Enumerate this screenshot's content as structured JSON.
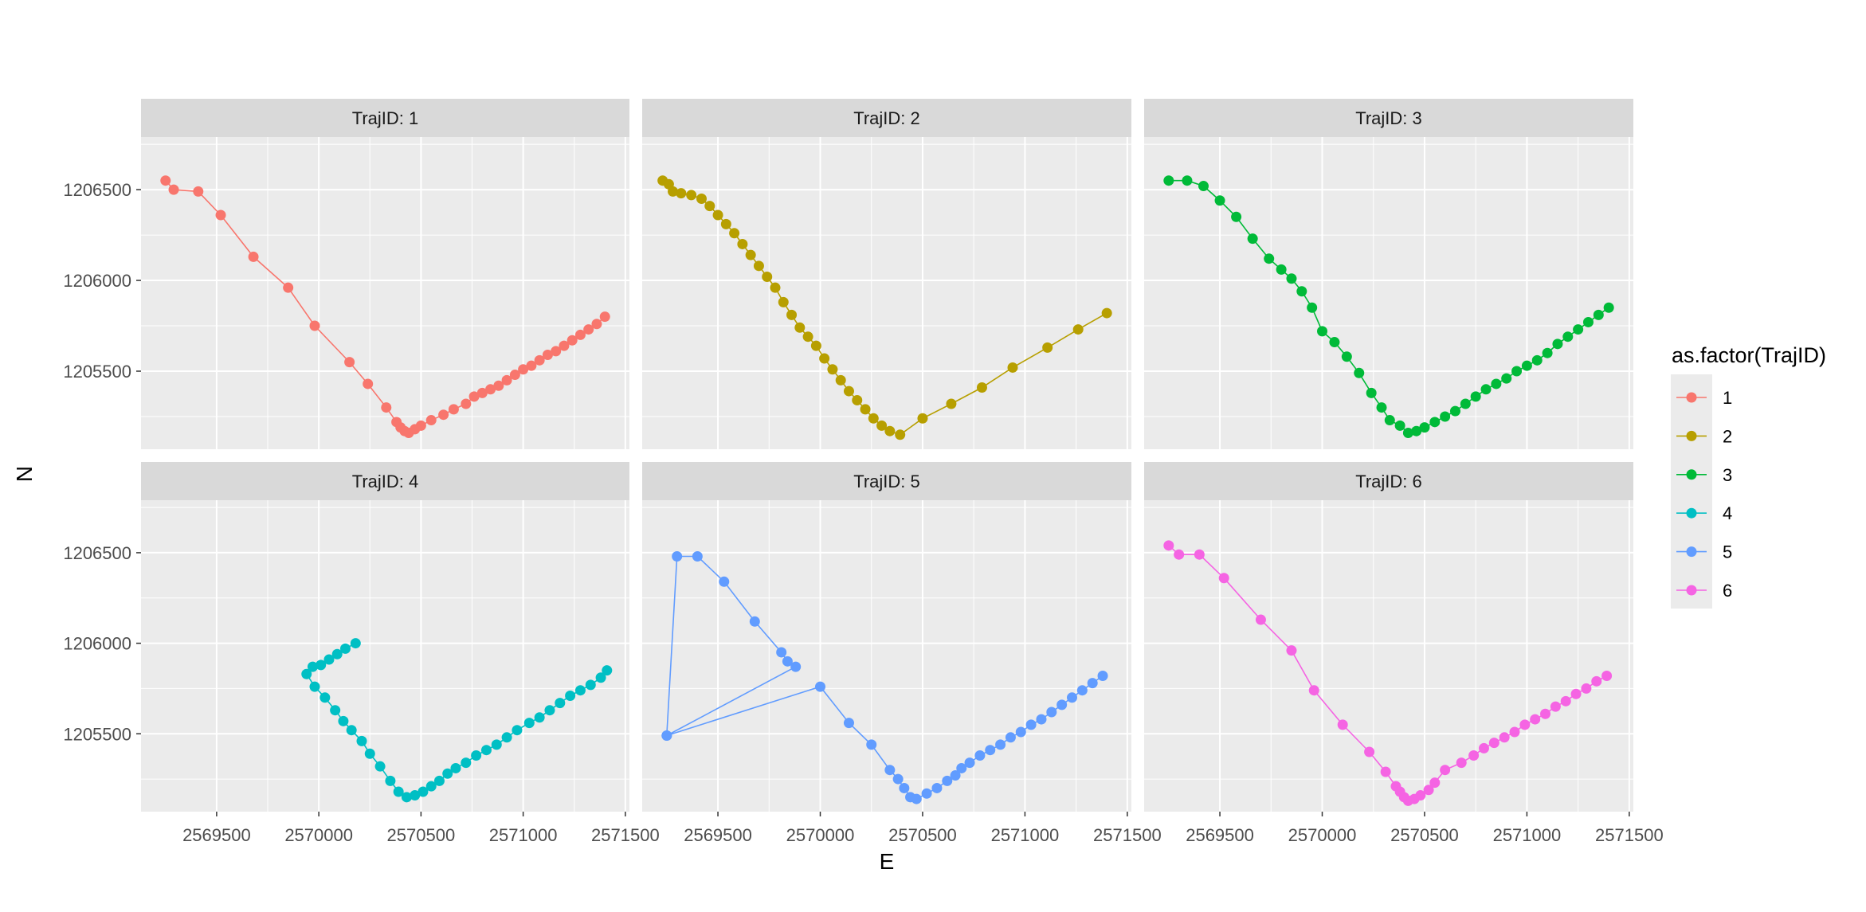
{
  "chart_data": {
    "type": "scatter",
    "subtype": "faceted-line-and-point",
    "xlabel": "E",
    "ylabel": "N",
    "xlim": [
      2569130,
      2571520
    ],
    "ylim": [
      1205070,
      1206790
    ],
    "x_ticks": [
      2569500,
      2570000,
      2570500,
      2571000,
      2571500
    ],
    "y_ticks": [
      1205500,
      1206000,
      1206500
    ],
    "x_tick_labels": [
      "2569500",
      "2570000",
      "2570500",
      "2571000",
      "2571500"
    ],
    "y_tick_labels": [
      "1205500",
      "1206000",
      "1206500"
    ],
    "grid": true,
    "legend": {
      "title": "as.factor(TrajID)",
      "placement": "right",
      "entries": [
        "1",
        "2",
        "3",
        "4",
        "5",
        "6"
      ]
    },
    "facets": [
      {
        "strip": "TrajID: 1",
        "legend_key": "1",
        "color": "#F8766D",
        "points": [
          [
            2569250,
            1206550
          ],
          [
            2569290,
            1206500
          ],
          [
            2569410,
            1206490
          ],
          [
            2569520,
            1206360
          ],
          [
            2569680,
            1206130
          ],
          [
            2569850,
            1205960
          ],
          [
            2569980,
            1205750
          ],
          [
            2570150,
            1205550
          ],
          [
            2570240,
            1205430
          ],
          [
            2570330,
            1205300
          ],
          [
            2570380,
            1205220
          ],
          [
            2570400,
            1205190
          ],
          [
            2570420,
            1205170
          ],
          [
            2570440,
            1205160
          ],
          [
            2570470,
            1205180
          ],
          [
            2570500,
            1205200
          ],
          [
            2570550,
            1205230
          ],
          [
            2570610,
            1205260
          ],
          [
            2570660,
            1205290
          ],
          [
            2570720,
            1205320
          ],
          [
            2570760,
            1205360
          ],
          [
            2570800,
            1205380
          ],
          [
            2570840,
            1205400
          ],
          [
            2570880,
            1205420
          ],
          [
            2570920,
            1205450
          ],
          [
            2570960,
            1205480
          ],
          [
            2571000,
            1205510
          ],
          [
            2571040,
            1205530
          ],
          [
            2571080,
            1205560
          ],
          [
            2571120,
            1205590
          ],
          [
            2571160,
            1205610
          ],
          [
            2571200,
            1205640
          ],
          [
            2571240,
            1205670
          ],
          [
            2571280,
            1205700
          ],
          [
            2571320,
            1205730
          ],
          [
            2571360,
            1205760
          ],
          [
            2571400,
            1205800
          ]
        ]
      },
      {
        "strip": "TrajID: 2",
        "legend_key": "2",
        "color": "#B79F00",
        "points": [
          [
            2569230,
            1206550
          ],
          [
            2569260,
            1206530
          ],
          [
            2569280,
            1206490
          ],
          [
            2569320,
            1206480
          ],
          [
            2569370,
            1206470
          ],
          [
            2569420,
            1206450
          ],
          [
            2569460,
            1206410
          ],
          [
            2569500,
            1206360
          ],
          [
            2569540,
            1206310
          ],
          [
            2569580,
            1206260
          ],
          [
            2569620,
            1206200
          ],
          [
            2569660,
            1206140
          ],
          [
            2569700,
            1206080
          ],
          [
            2569740,
            1206020
          ],
          [
            2569780,
            1205960
          ],
          [
            2569820,
            1205880
          ],
          [
            2569860,
            1205810
          ],
          [
            2569900,
            1205740
          ],
          [
            2569940,
            1205690
          ],
          [
            2569980,
            1205640
          ],
          [
            2570020,
            1205570
          ],
          [
            2570060,
            1205510
          ],
          [
            2570100,
            1205450
          ],
          [
            2570140,
            1205390
          ],
          [
            2570180,
            1205340
          ],
          [
            2570220,
            1205290
          ],
          [
            2570260,
            1205240
          ],
          [
            2570300,
            1205200
          ],
          [
            2570340,
            1205170
          ],
          [
            2570390,
            1205150
          ],
          [
            2570500,
            1205240
          ],
          [
            2570640,
            1205320
          ],
          [
            2570790,
            1205410
          ],
          [
            2570940,
            1205520
          ],
          [
            2571110,
            1205630
          ],
          [
            2571260,
            1205730
          ],
          [
            2571400,
            1205820
          ]
        ]
      },
      {
        "strip": "TrajID: 3",
        "legend_key": "3",
        "color": "#00BA38",
        "points": [
          [
            2569250,
            1206550
          ],
          [
            2569340,
            1206550
          ],
          [
            2569420,
            1206520
          ],
          [
            2569500,
            1206440
          ],
          [
            2569580,
            1206350
          ],
          [
            2569660,
            1206230
          ],
          [
            2569740,
            1206120
          ],
          [
            2569800,
            1206060
          ],
          [
            2569850,
            1206010
          ],
          [
            2569900,
            1205940
          ],
          [
            2569950,
            1205850
          ],
          [
            2570000,
            1205720
          ],
          [
            2570060,
            1205660
          ],
          [
            2570120,
            1205580
          ],
          [
            2570180,
            1205490
          ],
          [
            2570240,
            1205380
          ],
          [
            2570290,
            1205300
          ],
          [
            2570330,
            1205230
          ],
          [
            2570380,
            1205200
          ],
          [
            2570420,
            1205160
          ],
          [
            2570460,
            1205170
          ],
          [
            2570500,
            1205190
          ],
          [
            2570550,
            1205220
          ],
          [
            2570600,
            1205250
          ],
          [
            2570650,
            1205280
          ],
          [
            2570700,
            1205320
          ],
          [
            2570750,
            1205360
          ],
          [
            2570800,
            1205400
          ],
          [
            2570850,
            1205430
          ],
          [
            2570900,
            1205460
          ],
          [
            2570950,
            1205500
          ],
          [
            2571000,
            1205530
          ],
          [
            2571050,
            1205560
          ],
          [
            2571100,
            1205600
          ],
          [
            2571150,
            1205650
          ],
          [
            2571200,
            1205690
          ],
          [
            2571250,
            1205730
          ],
          [
            2571300,
            1205770
          ],
          [
            2571350,
            1205810
          ],
          [
            2571400,
            1205850
          ]
        ]
      },
      {
        "strip": "TrajID: 4",
        "legend_key": "4",
        "color": "#00BFC4",
        "points": [
          [
            2570180,
            1206000
          ],
          [
            2570130,
            1205970
          ],
          [
            2570090,
            1205940
          ],
          [
            2570050,
            1205910
          ],
          [
            2570010,
            1205880
          ],
          [
            2569970,
            1205870
          ],
          [
            2569940,
            1205830
          ],
          [
            2569980,
            1205760
          ],
          [
            2570030,
            1205700
          ],
          [
            2570080,
            1205630
          ],
          [
            2570120,
            1205570
          ],
          [
            2570160,
            1205520
          ],
          [
            2570210,
            1205460
          ],
          [
            2570250,
            1205390
          ],
          [
            2570300,
            1205320
          ],
          [
            2570350,
            1205240
          ],
          [
            2570390,
            1205180
          ],
          [
            2570430,
            1205150
          ],
          [
            2570470,
            1205160
          ],
          [
            2570510,
            1205180
          ],
          [
            2570550,
            1205210
          ],
          [
            2570590,
            1205240
          ],
          [
            2570630,
            1205280
          ],
          [
            2570670,
            1205310
          ],
          [
            2570720,
            1205340
          ],
          [
            2570770,
            1205380
          ],
          [
            2570820,
            1205410
          ],
          [
            2570870,
            1205440
          ],
          [
            2570920,
            1205480
          ],
          [
            2570970,
            1205520
          ],
          [
            2571030,
            1205560
          ],
          [
            2571080,
            1205590
          ],
          [
            2571130,
            1205630
          ],
          [
            2571180,
            1205670
          ],
          [
            2571230,
            1205710
          ],
          [
            2571280,
            1205740
          ],
          [
            2571330,
            1205770
          ],
          [
            2571380,
            1205810
          ],
          [
            2571410,
            1205850
          ]
        ]
      },
      {
        "strip": "TrajID: 5",
        "legend_key": "5",
        "color": "#619CFF",
        "points": [
          [
            2569250,
            1205490
          ],
          [
            2569880,
            1205870
          ],
          [
            2569840,
            1205900
          ],
          [
            2569810,
            1205950
          ],
          [
            2569680,
            1206120
          ],
          [
            2569530,
            1206340
          ],
          [
            2569400,
            1206480
          ],
          [
            2569300,
            1206480
          ],
          [
            2569250,
            1205490
          ],
          [
            2570000,
            1205760
          ],
          [
            2570140,
            1205560
          ],
          [
            2570250,
            1205440
          ],
          [
            2570340,
            1205300
          ],
          [
            2570380,
            1205250
          ],
          [
            2570410,
            1205200
          ],
          [
            2570440,
            1205150
          ],
          [
            2570470,
            1205140
          ],
          [
            2570520,
            1205170
          ],
          [
            2570570,
            1205200
          ],
          [
            2570620,
            1205240
          ],
          [
            2570660,
            1205270
          ],
          [
            2570690,
            1205310
          ],
          [
            2570730,
            1205340
          ],
          [
            2570780,
            1205380
          ],
          [
            2570830,
            1205410
          ],
          [
            2570880,
            1205440
          ],
          [
            2570930,
            1205480
          ],
          [
            2570980,
            1205510
          ],
          [
            2571030,
            1205550
          ],
          [
            2571080,
            1205580
          ],
          [
            2571130,
            1205620
          ],
          [
            2571180,
            1205660
          ],
          [
            2571230,
            1205700
          ],
          [
            2571280,
            1205740
          ],
          [
            2571330,
            1205780
          ],
          [
            2571380,
            1205820
          ]
        ]
      },
      {
        "strip": "TrajID: 6",
        "legend_key": "6",
        "color": "#F564E3",
        "points": [
          [
            2569250,
            1206540
          ],
          [
            2569300,
            1206490
          ],
          [
            2569400,
            1206490
          ],
          [
            2569520,
            1206360
          ],
          [
            2569700,
            1206130
          ],
          [
            2569850,
            1205960
          ],
          [
            2569960,
            1205740
          ],
          [
            2570100,
            1205550
          ],
          [
            2570230,
            1205400
          ],
          [
            2570310,
            1205290
          ],
          [
            2570360,
            1205210
          ],
          [
            2570380,
            1205180
          ],
          [
            2570400,
            1205150
          ],
          [
            2570420,
            1205130
          ],
          [
            2570450,
            1205140
          ],
          [
            2570480,
            1205160
          ],
          [
            2570520,
            1205190
          ],
          [
            2570550,
            1205230
          ],
          [
            2570600,
            1205300
          ],
          [
            2570680,
            1205340
          ],
          [
            2570740,
            1205380
          ],
          [
            2570790,
            1205420
          ],
          [
            2570840,
            1205450
          ],
          [
            2570890,
            1205480
          ],
          [
            2570940,
            1205510
          ],
          [
            2570990,
            1205550
          ],
          [
            2571040,
            1205580
          ],
          [
            2571090,
            1205610
          ],
          [
            2571140,
            1205650
          ],
          [
            2571190,
            1205680
          ],
          [
            2571240,
            1205720
          ],
          [
            2571290,
            1205750
          ],
          [
            2571340,
            1205790
          ],
          [
            2571390,
            1205820
          ]
        ]
      }
    ]
  }
}
